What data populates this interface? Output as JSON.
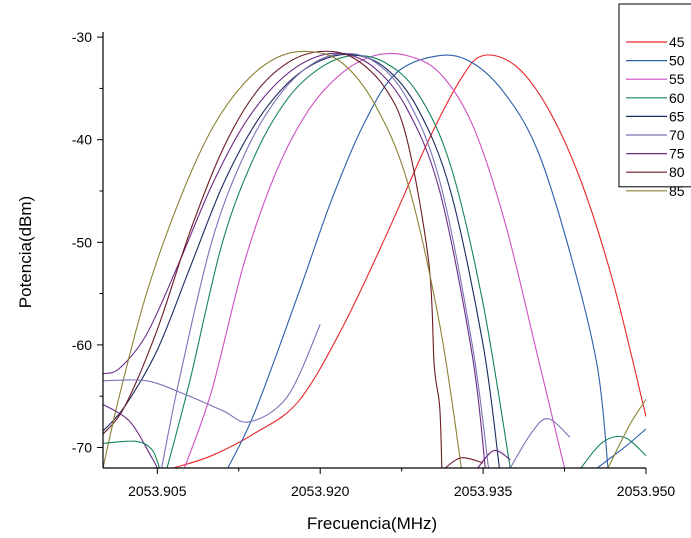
{
  "chart_data": {
    "type": "line",
    "title": "",
    "xlabel": "Frecuencia(MHz)",
    "ylabel": "Potencia(dBm)",
    "xlim": [
      2053.9,
      2053.95
    ],
    "ylim": [
      -72,
      -29.5
    ],
    "xticks": [
      2053.905,
      2053.92,
      2053.935,
      2053.95
    ],
    "xtick_labels": [
      "2053.905",
      "2053.920",
      "2053.935",
      "2053.950"
    ],
    "yticks": [
      -30,
      -40,
      -50,
      -60,
      -70
    ],
    "ytick_labels": [
      "-30",
      "-40",
      "-50",
      "-60",
      "-70"
    ],
    "grid": false,
    "legend_position": "top-right",
    "series": [
      {
        "name": "45",
        "color": "#e8262b",
        "x": [
          2053.9065,
          2053.91,
          2053.914,
          2053.918,
          2053.922,
          2053.926,
          2053.93,
          2053.933,
          2053.935,
          2053.938,
          2053.941,
          2053.944,
          2053.947,
          2053.95
        ],
        "y": [
          -72,
          -70.8,
          -68.6,
          -65.5,
          -58.4,
          -49.5,
          -40,
          -34,
          -31.8,
          -32.8,
          -37,
          -44,
          -54,
          -67
        ]
      },
      {
        "name": "50",
        "color": "#2e5ea8",
        "x": [
          2053.9115,
          2053.914,
          2053.918,
          2053.921,
          2053.924,
          2053.927,
          2053.931,
          2053.934,
          2053.937,
          2053.94,
          2053.943,
          2053.9455,
          2053.9465
        ],
        "y": [
          -72,
          -66.5,
          -55,
          -46,
          -38.5,
          -33.5,
          -31.8,
          -32.5,
          -35.5,
          -41,
          -51,
          -62,
          -72
        ]
      },
      {
        "name": "55",
        "color": "#cf4fc1",
        "x": [
          2053.9075,
          2053.91,
          2053.913,
          2053.916,
          2053.919,
          2053.922,
          2053.925,
          2053.928,
          2053.931,
          2053.934,
          2053.937,
          2053.94,
          2053.9425
        ],
        "y": [
          -72,
          -64.5,
          -52,
          -43,
          -37,
          -33.5,
          -31.8,
          -31.8,
          -33.5,
          -38.5,
          -48,
          -61,
          -72
        ]
      },
      {
        "name": "60",
        "color": "#15855b",
        "x": [
          2053.9059,
          2053.908,
          2053.911,
          2053.914,
          2053.917,
          2053.92,
          2053.923,
          2053.926,
          2053.929,
          2053.932,
          2053.935,
          2053.9375
        ],
        "y": [
          -72,
          -63.5,
          -50,
          -41.5,
          -36,
          -33,
          -31.8,
          -32.5,
          -35.5,
          -42.5,
          -56,
          -72
        ]
      },
      {
        "name": "65",
        "color": "#1b2a5c",
        "x": [
          2053.9,
          2053.902,
          2053.905,
          2053.908,
          2053.911,
          2053.914,
          2053.917,
          2053.92,
          2053.923,
          2053.926,
          2053.929,
          2053.932,
          2053.935,
          2053.9365
        ],
        "y": [
          -68.4,
          -66,
          -60.5,
          -52.5,
          -44.5,
          -38.5,
          -34.5,
          -32.3,
          -31.7,
          -33,
          -37,
          -45,
          -60,
          -72
        ]
      },
      {
        "name": "70",
        "color": "#7b72b5",
        "x": [
          2053.9054,
          2053.907,
          2053.91,
          2053.913,
          2053.916,
          2053.919,
          2053.922,
          2053.925,
          2053.928,
          2053.931,
          2053.934,
          2053.9355
        ],
        "y": [
          -72,
          -63.5,
          -50,
          -41.5,
          -36,
          -32.8,
          -31.6,
          -32.4,
          -36,
          -44,
          -60,
          -72
        ]
      },
      {
        "name": "75",
        "color": "#6b2c86",
        "x": [
          2053.9,
          2053.9015,
          2053.904,
          2053.907,
          2053.91,
          2053.913,
          2053.916,
          2053.919,
          2053.922,
          2053.925,
          2053.928,
          2053.931,
          2053.934,
          2053.9352
        ],
        "y": [
          -62.8,
          -62.3,
          -59,
          -52,
          -44.5,
          -38.5,
          -34.5,
          -32.2,
          -31.6,
          -33,
          -37,
          -45,
          -61,
          -72
        ]
      },
      {
        "name": "80",
        "color": "#6b1a22",
        "x": [
          2053.9,
          2053.902,
          2053.905,
          2053.908,
          2053.911,
          2053.914,
          2053.917,
          2053.92,
          2053.923,
          2053.926,
          2053.928,
          2053.93,
          2053.9305,
          2053.931,
          2053.9312
        ],
        "y": [
          -68.7,
          -66,
          -58.5,
          -49,
          -41,
          -35.5,
          -32.5,
          -31.4,
          -32,
          -35,
          -40,
          -52,
          -62,
          -66,
          -72
        ]
      },
      {
        "name": "85",
        "color": "#8a8234",
        "x": [
          2053.9,
          2053.9015,
          2053.904,
          2053.907,
          2053.91,
          2053.913,
          2053.916,
          2053.919,
          2053.922,
          2053.925,
          2053.928,
          2053.931,
          2053.933
        ],
        "y": [
          -72,
          -65,
          -55,
          -46,
          -39,
          -34.5,
          -32,
          -31.4,
          -32.5,
          -36.5,
          -44,
          -58,
          -72
        ]
      },
      {
        "name": "",
        "color": "#7b72b5",
        "x": [
          2053.9,
          2053.904,
          2053.9075,
          2053.911,
          2053.9135,
          2053.917,
          2053.92
        ],
        "y": [
          -63.5,
          -63.5,
          -64.8,
          -66.4,
          -67.5,
          -65,
          -58
        ]
      },
      {
        "name": "",
        "color": "#6b2c86",
        "x": [
          2053.9,
          2053.9025,
          2053.9045,
          2053.905
        ],
        "y": [
          -65.8,
          -67.5,
          -71,
          -72
        ]
      },
      {
        "name": "",
        "color": "#15855b",
        "x": [
          2053.9,
          2053.903,
          2053.9045,
          2053.9052
        ],
        "y": [
          -69.6,
          -69.4,
          -70.2,
          -72
        ]
      },
      {
        "name": "",
        "color": "#7b72b5",
        "x": [
          2053.9375,
          2053.9395,
          2053.941,
          2053.943
        ],
        "y": [
          -72,
          -68.5,
          -67.2,
          -69
        ]
      },
      {
        "name": "",
        "color": "#15855b",
        "x": [
          2053.944,
          2053.946,
          2053.948,
          2053.95
        ],
        "y": [
          -72,
          -69.5,
          -69,
          -70.8
        ]
      },
      {
        "name": "",
        "color": "#2e5ea8",
        "x": [
          2053.9455,
          2053.948,
          2053.95
        ],
        "y": [
          -72,
          -70,
          -68.2
        ]
      },
      {
        "name": "",
        "color": "#8a8234",
        "x": [
          2053.9465,
          2053.9485,
          2053.95
        ],
        "y": [
          -72,
          -67.8,
          -65.3
        ]
      },
      {
        "name": "",
        "color": "#6b2c86",
        "x": [
          2053.9345,
          2053.936,
          2053.9375
        ],
        "y": [
          -72,
          -70.3,
          -71.2
        ]
      },
      {
        "name": "",
        "color": "#6b1a22",
        "x": [
          2053.9315,
          2053.933,
          2053.935
        ],
        "y": [
          -72,
          -71,
          -71.5
        ]
      }
    ]
  }
}
